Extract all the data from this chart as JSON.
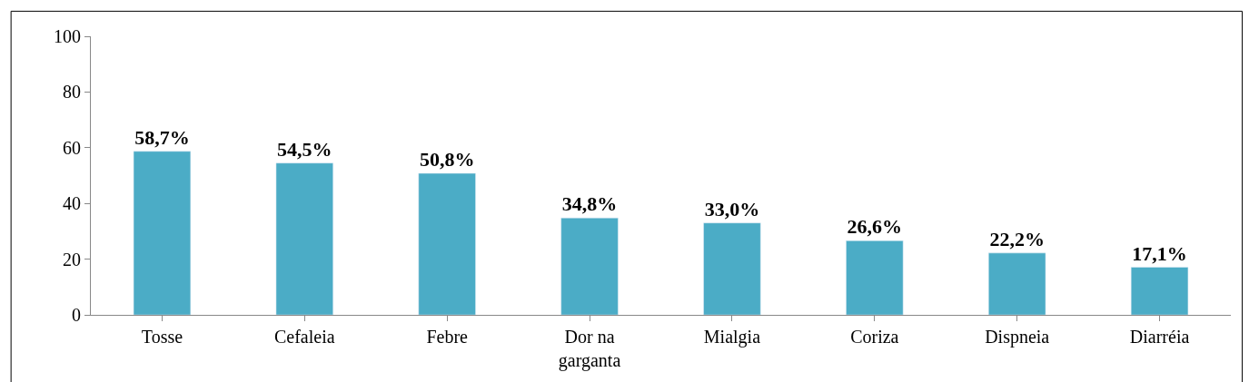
{
  "chart_data": {
    "type": "bar",
    "categories": [
      "Tosse",
      "Cefaleia",
      "Febre",
      "Dor na garganta",
      "Mialgia",
      "Coriza",
      "Dispneia",
      "Diarréia"
    ],
    "values": [
      58.7,
      54.5,
      50.8,
      34.8,
      33.0,
      26.6,
      22.2,
      17.1
    ],
    "value_labels": [
      "58,7%",
      "54,5%",
      "50,8%",
      "34,8%",
      "33,0%",
      "26,6%",
      "22,2%",
      "17,1%"
    ],
    "color": "#4bacc6",
    "ylim": [
      0,
      100
    ],
    "yticks": [
      0,
      20,
      40,
      60,
      80,
      100
    ]
  }
}
